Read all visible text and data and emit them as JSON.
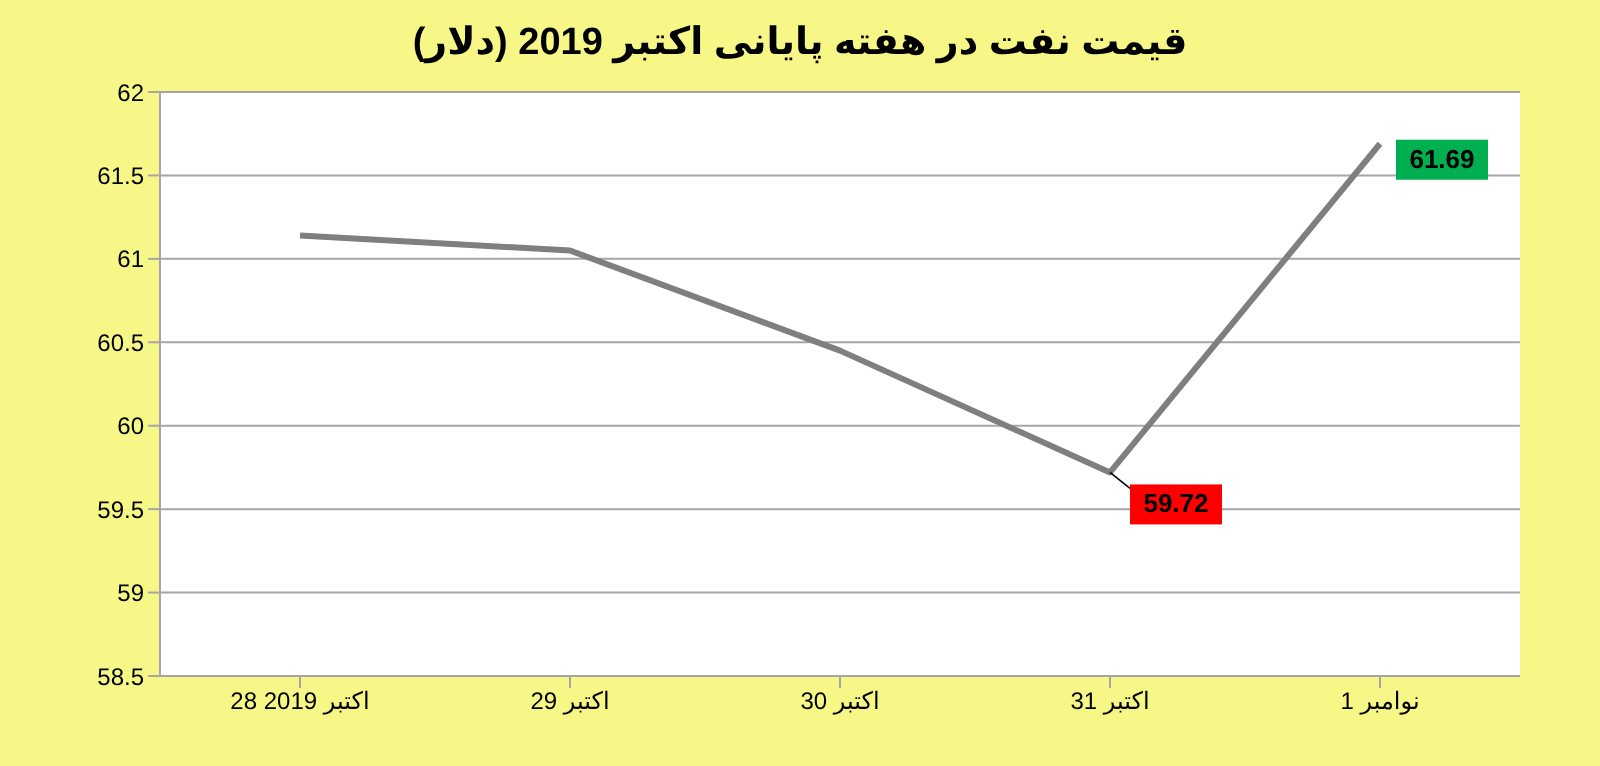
{
  "chart_data": {
    "type": "line",
    "title": "قیمت نفت در هفته پایانی اکتبر 2019 (دلار)",
    "categories": [
      "28 اکتبر 2019",
      "29 اکتبر",
      "30 اکتبر",
      "31 اکتبر",
      "1 نوامبر"
    ],
    "series": [
      {
        "color": "#7f7f7f",
        "values": [
          61.14,
          61.05,
          60.45,
          59.72,
          61.69
        ],
        "value_labels": [
          null,
          null,
          null,
          "59.72",
          "61.69"
        ]
      }
    ],
    "ylim": [
      58.5,
      62
    ],
    "yticks": [
      58.5,
      59,
      59.5,
      60,
      60.5,
      61,
      61.5,
      62
    ],
    "grid": "y",
    "legend": false,
    "marker": "none",
    "line_style": "solid"
  }
}
